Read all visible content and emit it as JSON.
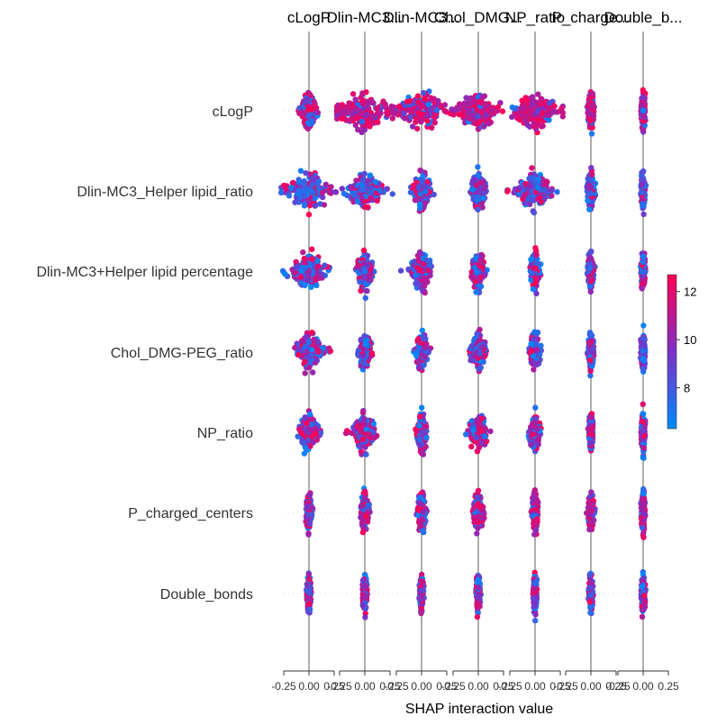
{
  "chart_data": {
    "type": "scatter",
    "subtype": "shap-interaction-beeswarm",
    "title": "",
    "xlabel": "SHAP interaction value",
    "ylabel": "",
    "features": [
      "cLogP",
      "Dlin-MC3_Helper lipid_ratio",
      "Dlin-MC3+Helper lipid percentage",
      "Chol_DMG-PEG_ratio",
      "NP_ratio",
      "P_charged_centers",
      "Double_bonds"
    ],
    "column_titles": [
      "cLogP",
      "Dlin-MC3...",
      "Dlin-MC3...",
      "Chol_DMG...",
      "NP_ratio",
      "P_charge...",
      "Double_b..."
    ],
    "xlim": [
      -0.25,
      0.25
    ],
    "x_ticks": [
      "-0.25",
      "0.00",
      "0.25"
    ],
    "colorbar": {
      "ticks": [
        8,
        10,
        12
      ],
      "range": [
        6.3,
        12.7
      ],
      "low_color": "#008afb",
      "mid_color": "#7e2fc6",
      "high_color": "#ff0052"
    },
    "grid": false,
    "legend": "right",
    "cells": [
      [
        {
          "spread": 0.08,
          "skew": 0.0,
          "hi": 0.6
        },
        {
          "spread": 0.32,
          "skew": -0.6,
          "hi": 0.85
        },
        {
          "spread": 0.26,
          "skew": -0.3,
          "hi": 0.8
        },
        {
          "spread": 0.22,
          "skew": -0.4,
          "hi": 0.8
        },
        {
          "spread": 0.25,
          "skew": 0.3,
          "hi": 0.85
        },
        {
          "spread": 0.03,
          "skew": 0.0,
          "hi": 0.85
        },
        {
          "spread": 0.02,
          "skew": 0.0,
          "hi": 0.75
        }
      ],
      [
        {
          "spread": 0.22,
          "skew": -0.2,
          "hi": 0.4
        },
        {
          "spread": 0.18,
          "skew": 0.5,
          "hi": 0.3
        },
        {
          "spread": 0.1,
          "skew": 0.0,
          "hi": 0.35
        },
        {
          "spread": 0.08,
          "skew": 0.0,
          "hi": 0.35
        },
        {
          "spread": 0.2,
          "skew": -0.2,
          "hi": 0.35
        },
        {
          "spread": 0.04,
          "skew": 0.0,
          "hi": 0.3
        },
        {
          "spread": 0.02,
          "skew": 0.0,
          "hi": 0.2
        }
      ],
      [
        {
          "spread": 0.18,
          "skew": -0.3,
          "hi": 0.5
        },
        {
          "spread": 0.08,
          "skew": 0.0,
          "hi": 0.5
        },
        {
          "spread": 0.11,
          "skew": -0.4,
          "hi": 0.45
        },
        {
          "spread": 0.07,
          "skew": 0.0,
          "hi": 0.5
        },
        {
          "spread": 0.05,
          "skew": 0.0,
          "hi": 0.5
        },
        {
          "spread": 0.03,
          "skew": 0.0,
          "hi": 0.55
        },
        {
          "spread": 0.02,
          "skew": 0.0,
          "hi": 0.6
        }
      ],
      [
        {
          "spread": 0.14,
          "skew": 0.3,
          "hi": 0.35
        },
        {
          "spread": 0.07,
          "skew": 0.0,
          "hi": 0.4
        },
        {
          "spread": 0.07,
          "skew": 0.0,
          "hi": 0.4
        },
        {
          "spread": 0.08,
          "skew": 0.0,
          "hi": 0.35
        },
        {
          "spread": 0.06,
          "skew": 0.0,
          "hi": 0.35
        },
        {
          "spread": 0.03,
          "skew": 0.0,
          "hi": 0.35
        },
        {
          "spread": 0.02,
          "skew": 0.0,
          "hi": 0.3
        }
      ],
      [
        {
          "spread": 0.11,
          "skew": 0.2,
          "hi": 0.5
        },
        {
          "spread": 0.12,
          "skew": -0.2,
          "hi": 0.55
        },
        {
          "spread": 0.05,
          "skew": 0.0,
          "hi": 0.55
        },
        {
          "spread": 0.1,
          "skew": 0.0,
          "hi": 0.6
        },
        {
          "spread": 0.06,
          "skew": 0.0,
          "hi": 0.55
        },
        {
          "spread": 0.02,
          "skew": 0.0,
          "hi": 0.5
        },
        {
          "spread": 0.02,
          "skew": 0.0,
          "hi": 0.55
        }
      ],
      [
        {
          "spread": 0.03,
          "skew": 0.0,
          "hi": 0.6
        },
        {
          "spread": 0.04,
          "skew": 0.0,
          "hi": 0.7
        },
        {
          "spread": 0.04,
          "skew": 0.0,
          "hi": 0.65
        },
        {
          "spread": 0.06,
          "skew": 0.0,
          "hi": 0.7
        },
        {
          "spread": 0.03,
          "skew": 0.0,
          "hi": 0.7
        },
        {
          "spread": 0.03,
          "skew": 0.0,
          "hi": 0.7
        },
        {
          "spread": 0.02,
          "skew": 0.0,
          "hi": 0.75
        }
      ],
      [
        {
          "spread": 0.02,
          "skew": 0.0,
          "hi": 0.5
        },
        {
          "spread": 0.02,
          "skew": 0.0,
          "hi": 0.55
        },
        {
          "spread": 0.02,
          "skew": 0.0,
          "hi": 0.5
        },
        {
          "spread": 0.02,
          "skew": 0.0,
          "hi": 0.45
        },
        {
          "spread": 0.02,
          "skew": 0.0,
          "hi": 0.5
        },
        {
          "spread": 0.02,
          "skew": 0.0,
          "hi": 0.5
        },
        {
          "spread": 0.02,
          "skew": 0.0,
          "hi": 0.55
        }
      ]
    ]
  }
}
